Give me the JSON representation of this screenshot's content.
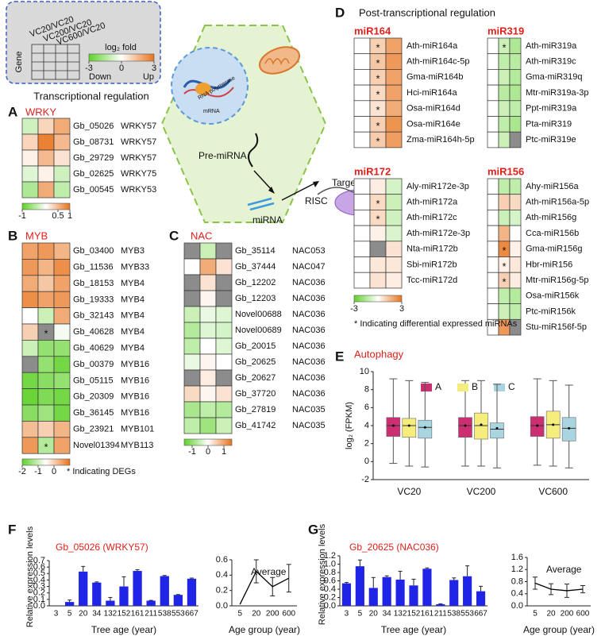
{
  "fold_legend": {
    "columns": [
      "VC20/VC20",
      "VC200/VC20",
      "VC600/VC20"
    ],
    "row_label": "Gene",
    "title": "log₂ fold",
    "clim": [
      -3,
      3
    ],
    "cticks": [
      -3,
      0,
      3
    ],
    "low_label": "Down",
    "high_label": "Up",
    "colors": [
      "#5fd12a",
      "#ffffff",
      "#e8731c"
    ]
  },
  "diagram": {
    "rna_polymerase": "RNA polymerase",
    "mrna": "mRNA",
    "pre_mirna": "Pre-miRNA",
    "target_mrna": "Target mRNA",
    "risc": "RISC",
    "mirna": "miRNA"
  },
  "chart_data": [
    {
      "type": "heatmap",
      "panel": "A",
      "heading": "Transcriptional regulation",
      "title": "WRKY",
      "rows": [
        "Gb_05026",
        "Gb_08731",
        "Gb_29729",
        "Gb_02625",
        "Gb_00545"
      ],
      "row_groups": [
        "WRKY57",
        "WRKY57",
        "WRKY57",
        "WRKY75",
        "WRKY53"
      ],
      "values": [
        [
          -0.3,
          0.3,
          0.6
        ],
        [
          0.3,
          0.9,
          0.5
        ],
        [
          0.1,
          0.5,
          0.2
        ],
        [
          -0.2,
          0.1,
          -0.3
        ],
        [
          -0.5,
          0.6,
          -0.4
        ]
      ],
      "clim": [
        -1,
        1
      ],
      "cticks": [
        -1,
        0.5,
        1
      ],
      "colors": [
        "#5fd12a",
        "#ffffff",
        "#e8731c"
      ],
      "na_color": "#8c8c8c"
    },
    {
      "type": "heatmap",
      "panel": "B",
      "title": "MYB",
      "rows": [
        "Gb_03400",
        "Gb_11536",
        "Gb_18153",
        "Gb_19333",
        "Gb_32143",
        "Gb_40628",
        "Gb_40629",
        "Gb_00379",
        "Gb_05115",
        "Gb_20309",
        "Gb_36145",
        "Gb_23921",
        "Novel01394"
      ],
      "row_groups": [
        "MYB3",
        "MYB33",
        "MYB4",
        "MYB4",
        "MYB4",
        "MYB4",
        "MYB4",
        "MYB16",
        "MYB16",
        "MYB16",
        "MYB16",
        "MYB101",
        "MYB113"
      ],
      "values": [
        [
          0.5,
          0.6,
          0.3
        ],
        [
          0.6,
          0.3,
          0.7
        ],
        [
          0.4,
          0.1,
          0.5
        ],
        [
          0.7,
          0.5,
          0.6
        ],
        [
          -0.5,
          -1,
          0.4
        ],
        [
          0,
          null,
          -0.6
        ],
        [
          -1,
          -1.5,
          -1.5
        ],
        [
          null,
          -1.5,
          -1.8
        ],
        [
          -1.8,
          -1.6,
          -1.5
        ],
        [
          -1.9,
          -1.7,
          -1.8
        ],
        [
          -1.6,
          -1.4,
          -1.8
        ],
        [
          0.2,
          0,
          0.3
        ],
        [
          0.6,
          -1.2,
          0.5
        ]
      ],
      "annotations": [
        {
          "row": 5,
          "col": 1,
          "text": "*"
        },
        {
          "row": 12,
          "col": 1,
          "text": "*"
        }
      ],
      "note": "* Indicating DEGs",
      "clim": [
        -2,
        1
      ],
      "cticks": [
        -2,
        -1,
        0
      ],
      "colors": [
        "#5fd12a",
        "#ffffff",
        "#e8731c"
      ],
      "na_color": "#8c8c8c"
    },
    {
      "type": "heatmap",
      "panel": "C",
      "title": "NAC",
      "rows": [
        "Gb_35114",
        "Gb_37444",
        "Gb_12202",
        "Gb_12203",
        "Novel00688",
        "Novel00689",
        "Gb_20015",
        "Gb_20625",
        "Gb_20627",
        "Gb_37720",
        "Gb_27819",
        "Gb_41742"
      ],
      "row_groups": [
        "NAC053",
        "NAC047",
        "NAC036",
        "NAC036",
        "NAC036",
        "NAC036",
        "NAC036",
        "NAC036",
        "NAC036",
        "NAC036",
        "NAC035",
        "NAC035"
      ],
      "values": [
        [
          null,
          -0.5,
          null
        ],
        [
          0,
          0.9,
          0.3
        ],
        [
          null,
          0.3,
          null
        ],
        [
          null,
          0.1,
          null
        ],
        [
          -0.5,
          -0.2,
          -0.3
        ],
        [
          -0.7,
          -0.3,
          -0.4
        ],
        [
          -0.6,
          0,
          -0.3
        ],
        [
          -0.2,
          0.1,
          0
        ],
        [
          null,
          0.2,
          null
        ],
        [
          0.4,
          0.1,
          0.3
        ],
        [
          -0.8,
          -0.6,
          -0.7
        ],
        [
          -0.6,
          -0.9,
          -0.5
        ]
      ],
      "clim": [
        -1.5,
        1.5
      ],
      "cticks": [
        -1,
        0,
        1
      ],
      "colors": [
        "#5fd12a",
        "#ffffff",
        "#e8731c"
      ],
      "na_color": "#8c8c8c"
    },
    {
      "type": "heatmap_group",
      "panel": "D",
      "title": "Post-transcriptional regulation",
      "groups": [
        {
          "title": "miR164",
          "rows": [
            "Ath-miR164a",
            "Ath-miR164c-5p",
            "Gma-miR164b",
            "Hci-miR164a",
            "Osa-miR164d",
            "Osa-miR164e",
            "Zma-miR164h-5p"
          ],
          "values": [
            [
              0,
              1,
              2
            ],
            [
              0,
              1.2,
              2.2
            ],
            [
              0,
              1,
              2
            ],
            [
              0,
              0.8,
              2
            ],
            [
              0,
              0.6,
              1.8
            ],
            [
              0,
              1,
              2.3
            ],
            [
              0,
              1.1,
              2.1
            ]
          ],
          "annotations": [
            {
              "row": 0,
              "col": 1,
              "text": "*"
            },
            {
              "row": 1,
              "col": 1,
              "text": "*"
            },
            {
              "row": 2,
              "col": 1,
              "text": "*"
            },
            {
              "row": 3,
              "col": 1,
              "text": "*"
            },
            {
              "row": 4,
              "col": 1,
              "text": "*"
            },
            {
              "row": 5,
              "col": 1,
              "text": "*"
            },
            {
              "row": 6,
              "col": 1,
              "text": "*"
            }
          ]
        },
        {
          "title": "miR319",
          "rows": [
            "Ath-miR319a",
            "Ath-miR319c",
            "Gma-miR319q",
            "Mtr-miR319a-3p",
            "Ppt-miR319a",
            "Pta-miR319",
            "Ptc-miR319e"
          ],
          "values": [
            [
              0,
              -1,
              -1.5
            ],
            [
              0,
              -1.2,
              -1.3
            ],
            [
              0,
              -1,
              -1.4
            ],
            [
              0,
              -1.3,
              -1.5
            ],
            [
              0,
              -1,
              -1.2
            ],
            [
              0,
              -1.2,
              -1.6
            ],
            [
              0,
              -1,
              null
            ]
          ],
          "annotations": [
            {
              "row": 0,
              "col": 1,
              "text": "*"
            }
          ]
        },
        {
          "title": "miR172",
          "rows": [
            "Aly-miR172e-3p",
            "Ath-miR172a",
            "Ath-miR172c",
            "Ath-miR172e-3p",
            "Nta-miR172b",
            "Sbi-miR172b",
            "Tcc-miR172d"
          ],
          "values": [
            [
              0,
              0.4,
              -0.8
            ],
            [
              0,
              0.8,
              -1
            ],
            [
              0,
              0.8,
              -0.9
            ],
            [
              0,
              0.3,
              -0.7
            ],
            [
              0,
              null,
              0.6
            ],
            [
              0,
              0.5,
              0.5
            ],
            [
              0,
              0.6,
              0.4
            ]
          ],
          "annotations": [
            {
              "row": 1,
              "col": 1,
              "text": "*"
            },
            {
              "row": 2,
              "col": 1,
              "text": "*"
            }
          ]
        },
        {
          "title": "miR156",
          "rows": [
            "Ahy-miR156a",
            "Ath-miR156a-5p",
            "Ath-miR156g",
            "Cca-miR156b",
            "Gma-miR156g",
            "Hbr-miR156",
            "Mtr-miR156g-5p",
            "Osa-miR156k",
            "Ptc-miR156k",
            "Stu-miR156f-5p"
          ],
          "values": [
            [
              0,
              -1.2,
              -1.2
            ],
            [
              0,
              1,
              0.8
            ],
            [
              0,
              -1,
              -0.8
            ],
            [
              0,
              1.6,
              0
            ],
            [
              0,
              2.5,
              0.3
            ],
            [
              0,
              0.3,
              0.5
            ],
            [
              0,
              1,
              0.4
            ],
            [
              0,
              -1.2,
              -1.4
            ],
            [
              0,
              -1,
              -1.2
            ],
            [
              0,
              2.2,
              null
            ]
          ],
          "annotations": [
            {
              "row": 4,
              "col": 1,
              "text": "*"
            },
            {
              "row": 5,
              "col": 1,
              "text": "*"
            },
            {
              "row": 6,
              "col": 1,
              "text": "*"
            }
          ]
        }
      ],
      "note": "* Indicating differential expressed miRNAs",
      "clim": [
        -3,
        3
      ],
      "cticks": [
        -3,
        3
      ],
      "colors": [
        "#5fd12a",
        "#ffffff",
        "#e8731c"
      ],
      "na_color": "#8c8c8c"
    },
    {
      "type": "box",
      "panel": "E",
      "title": "Autophagy",
      "ylabel": "log₂ (FPKM)",
      "categories": [
        "VC20",
        "VC200",
        "VC600"
      ],
      "series": [
        {
          "name": "A",
          "color": "#cc2e72",
          "boxes": [
            {
              "whislo": -0.2,
              "q1": 2.8,
              "med": 4,
              "q3": 4.9,
              "whishi": 9.2,
              "mean": 4.0
            },
            {
              "whislo": -0.5,
              "q1": 2.7,
              "med": 4,
              "q3": 4.9,
              "whishi": 9,
              "mean": 4.0
            },
            {
              "whislo": -0.4,
              "q1": 2.8,
              "med": 4,
              "q3": 5,
              "whishi": 9.2,
              "mean": 4.0
            }
          ]
        },
        {
          "name": "B",
          "color": "#f6ee7c",
          "boxes": [
            {
              "whislo": -0.5,
              "q1": 2.7,
              "med": 4,
              "q3": 4.8,
              "whishi": 9,
              "mean": 4.0
            },
            {
              "whislo": -0.5,
              "q1": 2.5,
              "med": 4,
              "q3": 5.4,
              "whishi": 9,
              "mean": 4.1
            },
            {
              "whislo": -0.5,
              "q1": 2.6,
              "med": 4.1,
              "q3": 5.6,
              "whishi": 9,
              "mean": 4.1
            }
          ]
        },
        {
          "name": "C",
          "color": "#a9d5e0",
          "boxes": [
            {
              "whislo": -0.6,
              "q1": 2.6,
              "med": 3.8,
              "q3": 4.6,
              "whishi": 8.8,
              "mean": 3.8
            },
            {
              "whislo": -0.7,
              "q1": 2.6,
              "med": 3.6,
              "q3": 4.3,
              "whishi": 8.6,
              "mean": 3.7
            },
            {
              "whislo": -0.7,
              "q1": 2.3,
              "med": 3.7,
              "q3": 4.9,
              "whishi": 8.5,
              "mean": 3.7
            }
          ]
        }
      ],
      "ylim": [
        -2,
        10
      ],
      "yticks": [
        -2,
        0,
        2,
        4,
        6,
        8,
        10
      ]
    },
    {
      "type": "bar",
      "panel": "F",
      "title": "Gb_05026 (WRKY57)",
      "xlabel": "Tree age (year)",
      "ylabel": "Relative expression levels",
      "color": "#1f24e6",
      "categories": [
        "3",
        "5",
        "20",
        "34",
        "132",
        "152",
        "161",
        "211",
        "538",
        "553",
        "667"
      ],
      "values": [
        0,
        0.06,
        0.53,
        0.36,
        0.08,
        0.3,
        0.54,
        0.08,
        0.46,
        0.17,
        0.42
      ],
      "errors": [
        0,
        0.03,
        0.08,
        0.01,
        0.05,
        0.15,
        0.02,
        0.005,
        0.01,
        0.005,
        0.01
      ],
      "ylim": [
        0,
        0.7
      ],
      "yticks": [
        {
          "value": 0,
          "label": "0.0"
        },
        0.1,
        0.2,
        0.3,
        0.4,
        0.5,
        0.6,
        0.7
      ],
      "inset": {
        "type": "line",
        "title": "Average",
        "xlabel": "Age group (year)",
        "color": "#000000",
        "categories": [
          "5",
          "20",
          "200",
          "600"
        ],
        "values": [
          0.02,
          0.45,
          0.25,
          0.36
        ],
        "errors": [
          0,
          0.15,
          0.12,
          0.18
        ],
        "ylim": [
          0,
          0.6
        ],
        "yticks": [
          {
            "value": 0,
            "label": "0.0"
          },
          0.2,
          0.4,
          0.6
        ]
      }
    },
    {
      "type": "bar",
      "panel": "G",
      "title": "Gb_20625 (NAC036)",
      "xlabel": "Tree age (year)",
      "ylabel": "Relative expression levels",
      "color": "#1f24e6",
      "categories": [
        "3",
        "5",
        "20",
        "34",
        "132",
        "152",
        "161",
        "211",
        "538",
        "553",
        "667"
      ],
      "values": [
        0.54,
        0.95,
        0.43,
        0.69,
        0.63,
        0.49,
        0.89,
        0.04,
        0.62,
        0.71,
        0.35
      ],
      "errors": [
        0.02,
        0.15,
        0.25,
        0.03,
        0.2,
        0.15,
        0.02,
        0.01,
        0.05,
        0.25,
        0.12
      ],
      "ylim": [
        0,
        1.2
      ],
      "yticks": [
        {
          "value": 0,
          "label": "0.0"
        },
        0.2,
        0.4,
        0.6,
        0.8,
        {
          "value": 1,
          "label": "1.0"
        },
        1.2
      ],
      "inset": {
        "type": "line",
        "title": "Average",
        "xlabel": "Age group (year)",
        "color": "#000000",
        "categories": [
          "5",
          "20",
          "200",
          "600"
        ],
        "values": [
          0.75,
          0.55,
          0.5,
          0.55
        ],
        "errors": [
          0.2,
          0.18,
          0.22,
          0.12
        ],
        "ylim": [
          0,
          1.6
        ],
        "yticks": [
          {
            "value": 0,
            "label": "0.0"
          },
          0.4,
          0.8,
          1.2,
          1.6
        ]
      }
    }
  ]
}
